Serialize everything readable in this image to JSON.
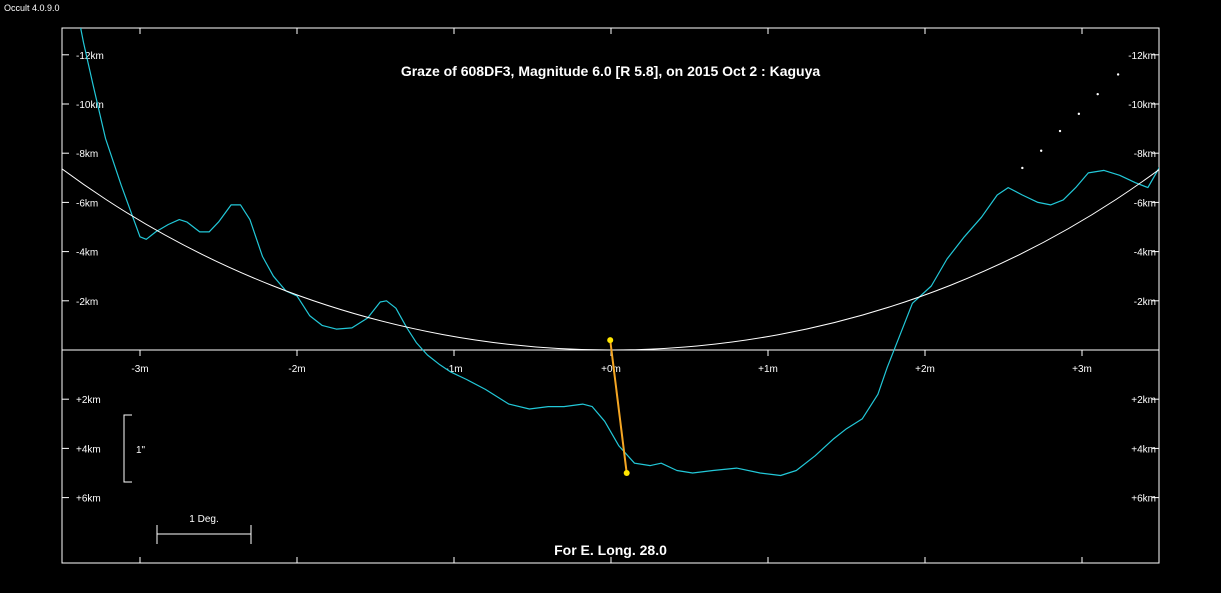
{
  "app": {
    "version_label": "Occult 4.0.9.0"
  },
  "colors": {
    "background": "#000000",
    "frame": "#ffffff",
    "limb_profile": "#22c8d8",
    "center_of_mass_circle": "#ffffff",
    "path_line": "#f5a623",
    "path_endpoints": "#ffe600"
  },
  "chart_data": {
    "type": "line",
    "title": "Graze of  608DF3,  Magnitude 6.0 [R 5.8],  on 2015 Oct  2  :  Kaguya",
    "footer": "For E. Long. 28.0",
    "x_unit": "m",
    "y_unit": "km",
    "xlim": [
      -3.5,
      3.5
    ],
    "ylim": [
      -12.2,
      8.5
    ],
    "x_ticks": [
      {
        "value": -3,
        "label": "-3m"
      },
      {
        "value": -2,
        "label": "-2m"
      },
      {
        "value": -1,
        "label": "-1m"
      },
      {
        "value": 0,
        "label": "+0m"
      },
      {
        "value": 1,
        "label": "+1m"
      },
      {
        "value": 2,
        "label": "+2m"
      },
      {
        "value": 3,
        "label": "+3m"
      }
    ],
    "y_ticks": [
      {
        "value": -12,
        "label": "-12km"
      },
      {
        "value": -10,
        "label": "-10km"
      },
      {
        "value": -8,
        "label": "-8km"
      },
      {
        "value": -6,
        "label": "-6km"
      },
      {
        "value": -4,
        "label": "-4km"
      },
      {
        "value": -2,
        "label": "-2km"
      },
      {
        "value": 2,
        "label": "+2km"
      },
      {
        "value": 4,
        "label": "+4km"
      },
      {
        "value": 6,
        "label": "+6km"
      }
    ],
    "series": [
      {
        "kind": "limb_profile",
        "points": [
          [
            -3.4,
            -13.8
          ],
          [
            -3.36,
            -12.5
          ],
          [
            -3.3,
            -10.8
          ],
          [
            -3.22,
            -8.6
          ],
          [
            -3.12,
            -6.7
          ],
          [
            -3.04,
            -5.3
          ],
          [
            -3.0,
            -4.6
          ],
          [
            -2.96,
            -4.5
          ],
          [
            -2.9,
            -4.8
          ],
          [
            -2.82,
            -5.1
          ],
          [
            -2.75,
            -5.3
          ],
          [
            -2.7,
            -5.2
          ],
          [
            -2.62,
            -4.8
          ],
          [
            -2.56,
            -4.8
          ],
          [
            -2.5,
            -5.2
          ],
          [
            -2.42,
            -5.9
          ],
          [
            -2.36,
            -5.9
          ],
          [
            -2.3,
            -5.3
          ],
          [
            -2.22,
            -3.8
          ],
          [
            -2.15,
            -3.0
          ],
          [
            -2.07,
            -2.4
          ],
          [
            -2.0,
            -2.2
          ],
          [
            -1.92,
            -1.4
          ],
          [
            -1.84,
            -1.0
          ],
          [
            -1.75,
            -0.85
          ],
          [
            -1.65,
            -0.9
          ],
          [
            -1.55,
            -1.3
          ],
          [
            -1.47,
            -1.95
          ],
          [
            -1.43,
            -2.0
          ],
          [
            -1.37,
            -1.7
          ],
          [
            -1.3,
            -0.9
          ],
          [
            -1.24,
            -0.3
          ],
          [
            -1.17,
            0.2
          ],
          [
            -1.09,
            0.6
          ],
          [
            -1.02,
            0.9
          ],
          [
            -0.92,
            1.2
          ],
          [
            -0.8,
            1.6
          ],
          [
            -0.65,
            2.2
          ],
          [
            -0.52,
            2.4
          ],
          [
            -0.4,
            2.3
          ],
          [
            -0.3,
            2.3
          ],
          [
            -0.18,
            2.2
          ],
          [
            -0.12,
            2.3
          ],
          [
            -0.04,
            2.9
          ],
          [
            0.05,
            3.9
          ],
          [
            0.15,
            4.6
          ],
          [
            0.25,
            4.7
          ],
          [
            0.32,
            4.6
          ],
          [
            0.42,
            4.9
          ],
          [
            0.52,
            5.0
          ],
          [
            0.65,
            4.9
          ],
          [
            0.8,
            4.8
          ],
          [
            0.95,
            5.0
          ],
          [
            1.08,
            5.1
          ],
          [
            1.18,
            4.9
          ],
          [
            1.3,
            4.3
          ],
          [
            1.42,
            3.6
          ],
          [
            1.5,
            3.2
          ],
          [
            1.6,
            2.8
          ],
          [
            1.7,
            1.8
          ],
          [
            1.76,
            0.7
          ],
          [
            1.84,
            -0.6
          ],
          [
            1.92,
            -1.9
          ],
          [
            2.04,
            -2.6
          ],
          [
            2.14,
            -3.7
          ],
          [
            2.25,
            -4.6
          ],
          [
            2.36,
            -5.4
          ],
          [
            2.46,
            -6.3
          ],
          [
            2.53,
            -6.6
          ],
          [
            2.62,
            -6.3
          ],
          [
            2.72,
            -6.0
          ],
          [
            2.8,
            -5.9
          ],
          [
            2.88,
            -6.1
          ],
          [
            2.96,
            -6.6
          ],
          [
            3.04,
            -7.2
          ],
          [
            3.14,
            -7.3
          ],
          [
            3.24,
            -7.1
          ],
          [
            3.34,
            -6.8
          ],
          [
            3.42,
            -6.6
          ],
          [
            3.5,
            -7.5
          ]
        ]
      },
      {
        "kind": "mean_limb_circle",
        "center_y": -37.5,
        "radius": 37.5
      },
      {
        "kind": "dotted_limb",
        "points": [
          [
            2.62,
            -7.4
          ],
          [
            2.74,
            -8.1
          ],
          [
            2.86,
            -8.9
          ],
          [
            2.98,
            -9.6
          ],
          [
            3.1,
            -10.4
          ],
          [
            3.23,
            -11.2
          ]
        ]
      },
      {
        "kind": "graze_path",
        "from": [
          -0.005,
          -0.4
        ],
        "to": [
          0.1,
          5.0
        ]
      }
    ],
    "scale_bars": [
      {
        "label": "1\"",
        "orientation": "vertical"
      },
      {
        "label": "1 Deg.",
        "orientation": "horizontal"
      }
    ]
  }
}
